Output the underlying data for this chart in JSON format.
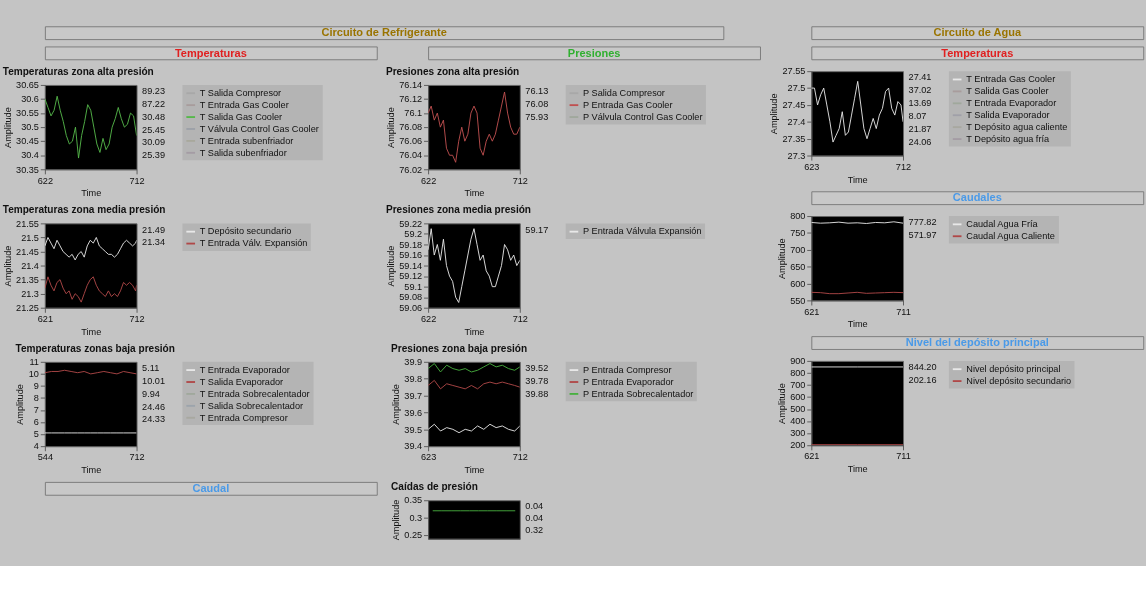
{
  "chart_data": [
    {
      "type": "other",
      "title": "Circuito de Refrigerante",
      "colors": [
        "#9a7400"
      ]
    },
    {
      "type": "other",
      "title": "Temperaturas",
      "colors": [
        "#e02020"
      ]
    },
    {
      "type": "line",
      "title": "Temperaturas zona alta presión",
      "xlabel": "Time",
      "ylabel": "Amplitude",
      "legend": "right",
      "x": [
        622,
        625,
        628,
        631,
        634,
        637,
        640,
        643,
        646,
        649,
        652,
        655,
        658,
        661,
        664,
        667,
        670,
        673,
        676,
        679,
        682,
        685,
        688,
        691,
        694,
        697,
        700,
        703,
        706,
        709,
        712
      ],
      "xlim": [
        622,
        712
      ],
      "xticks": [
        622,
        712
      ],
      "ylim": [
        30.35,
        30.65
      ],
      "yticks": [
        30.35,
        30.4,
        30.45,
        30.5,
        30.55,
        30.6,
        30.65
      ],
      "series": [
        {
          "name": "T Salida Compresor",
          "color": "#a8a8a8",
          "values": [
            null,
            null,
            null,
            null,
            null,
            null,
            null,
            null,
            null,
            null,
            null,
            null,
            null,
            null,
            null,
            null,
            null,
            null,
            null,
            null,
            null,
            null,
            null,
            null,
            null,
            null,
            null,
            null,
            null,
            null,
            null
          ]
        },
        {
          "name": "T Entrada Gas Cooler",
          "color": "#a89c9c",
          "values": [
            null,
            null,
            null,
            null,
            null,
            null,
            null,
            null,
            null,
            null,
            null,
            null,
            null,
            null,
            null,
            null,
            null,
            null,
            null,
            null,
            null,
            null,
            null,
            null,
            null,
            null,
            null,
            null,
            null,
            null,
            null
          ]
        },
        {
          "name": "T Salida Gas Cooler",
          "color": "#55b84a",
          "values": [
            30.6,
            30.57,
            30.54,
            30.56,
            30.61,
            30.56,
            30.52,
            30.47,
            30.44,
            30.45,
            30.5,
            30.39,
            30.47,
            30.52,
            30.58,
            30.56,
            30.5,
            30.44,
            30.41,
            30.46,
            30.42,
            30.44,
            30.5,
            30.53,
            30.57,
            30.53,
            30.5,
            30.51,
            30.55,
            30.54,
            30.47
          ]
        },
        {
          "name": "T Válvula Control Gas Cooler",
          "color": "#9ca0a8",
          "values": [
            null,
            null,
            null,
            null,
            null,
            null,
            null,
            null,
            null,
            null,
            null,
            null,
            null,
            null,
            null,
            null,
            null,
            null,
            null,
            null,
            null,
            null,
            null,
            null,
            null,
            null,
            null,
            null,
            null,
            null,
            null
          ]
        },
        {
          "name": "T Entrada subenfriador",
          "color": "#a8a89c",
          "values": [
            null,
            null,
            null,
            null,
            null,
            null,
            null,
            null,
            null,
            null,
            null,
            null,
            null,
            null,
            null,
            null,
            null,
            null,
            null,
            null,
            null,
            null,
            null,
            null,
            null,
            null,
            null,
            null,
            null,
            null,
            null
          ]
        },
        {
          "name": "T Salida subenfriador",
          "color": "#a49ca4",
          "values": [
            null,
            null,
            null,
            null,
            null,
            null,
            null,
            null,
            null,
            null,
            null,
            null,
            null,
            null,
            null,
            null,
            null,
            null,
            null,
            null,
            null,
            null,
            null,
            null,
            null,
            null,
            null,
            null,
            null,
            null,
            null
          ]
        }
      ],
      "annotations": [
        "89.23",
        "87.22",
        "30.48",
        "25.45",
        "30.09",
        "25.39"
      ]
    },
    {
      "type": "line",
      "title": "Temperaturas zona media presión",
      "xlabel": "Time",
      "ylabel": "Amplitude",
      "legend": "right",
      "x": [
        621,
        624,
        627,
        630,
        633,
        636,
        639,
        642,
        645,
        648,
        651,
        654,
        657,
        660,
        663,
        666,
        669,
        672,
        675,
        678,
        681,
        684,
        687,
        690,
        693,
        696,
        699,
        702,
        705,
        708,
        711,
        712
      ],
      "xlim": [
        621,
        712
      ],
      "xticks": [
        621,
        712
      ],
      "ylim": [
        21.25,
        21.55
      ],
      "yticks": [
        21.25,
        21.3,
        21.35,
        21.4,
        21.45,
        21.5,
        21.55
      ],
      "series": [
        {
          "name": "T Depósito secundario",
          "color": "#e8e8e8",
          "values": [
            21.47,
            21.5,
            21.48,
            21.46,
            21.49,
            21.47,
            21.45,
            21.44,
            21.43,
            21.44,
            21.42,
            21.44,
            21.45,
            21.43,
            21.47,
            21.49,
            21.48,
            21.5,
            21.47,
            21.46,
            21.45,
            21.44,
            21.44,
            21.43,
            21.44,
            21.46,
            21.48,
            21.49,
            21.48,
            21.47,
            21.48,
            21.49
          ]
        },
        {
          "name": "T Entrada Válv. Expansión",
          "color": "#b04848",
          "values": [
            21.32,
            21.36,
            21.33,
            21.31,
            21.34,
            21.35,
            21.32,
            21.3,
            21.31,
            21.28,
            21.3,
            21.29,
            21.27,
            21.3,
            21.33,
            21.35,
            21.36,
            21.33,
            21.31,
            21.3,
            21.29,
            21.31,
            21.29,
            21.3,
            21.29,
            21.31,
            21.34,
            21.33,
            21.34,
            21.33,
            21.31,
            21.33
          ]
        }
      ],
      "annotations": [
        "21.49",
        "21.34"
      ]
    },
    {
      "type": "line",
      "title": "Temperaturas zonas baja presión",
      "xlabel": "Time",
      "ylabel": "Amplitude",
      "legend": "right",
      "x": [
        544,
        556,
        568,
        580,
        592,
        604,
        616,
        628,
        640,
        652,
        664,
        676,
        688,
        700,
        712
      ],
      "xlim": [
        544,
        712
      ],
      "xticks": [
        544,
        712
      ],
      "ylim": [
        4,
        11
      ],
      "yticks": [
        4,
        5,
        6,
        7,
        8,
        9,
        10,
        11
      ],
      "series": [
        {
          "name": "T Entrada Evaporador",
          "color": "#e8e8e8",
          "values": [
            5.1,
            5.1,
            5.1,
            5.1,
            5.1,
            5.1,
            5.1,
            5.1,
            5.1,
            5.1,
            5.1,
            5.1,
            5.1,
            5.1,
            5.1
          ]
        },
        {
          "name": "T Salida Evaporador",
          "color": "#b04848",
          "values": [
            10.1,
            10.2,
            10.2,
            10.3,
            10.2,
            10.1,
            10.2,
            10.0,
            10.1,
            10.2,
            10.1,
            10.0,
            10.2,
            10.1,
            10.0
          ]
        },
        {
          "name": "T Entrada Sobrecalentador",
          "color": "#a0a89c",
          "values": [
            null,
            null,
            null,
            null,
            null,
            null,
            null,
            null,
            null,
            null,
            null,
            null,
            null,
            null,
            null
          ]
        },
        {
          "name": "T Salida Sobrecalentador",
          "color": "#9ca4ac",
          "values": [
            null,
            null,
            null,
            null,
            null,
            null,
            null,
            null,
            null,
            null,
            null,
            null,
            null,
            null,
            null
          ]
        },
        {
          "name": "T Entrada Compresor",
          "color": "#a8a8a0",
          "values": [
            null,
            null,
            null,
            null,
            null,
            null,
            null,
            null,
            null,
            null,
            null,
            null,
            null,
            null,
            null
          ]
        }
      ],
      "annotations": [
        "5.11",
        "10.01",
        "9.94",
        "24.46",
        "24.33"
      ]
    },
    {
      "type": "other",
      "title": "Caudal",
      "colors": [
        "#4a9ae8"
      ]
    },
    {
      "type": "other",
      "title": "Presiones",
      "colors": [
        "#30b030"
      ]
    },
    {
      "type": "line",
      "title": "Presiones zona alta presión",
      "xlabel": "Time",
      "ylabel": "Amplitude",
      "legend": "right",
      "x": [
        622,
        625,
        628,
        631,
        634,
        637,
        640,
        643,
        646,
        649,
        652,
        655,
        658,
        661,
        664,
        667,
        670,
        673,
        676,
        679,
        682,
        685,
        688,
        691,
        694,
        697,
        700,
        703,
        706,
        709,
        712
      ],
      "xlim": [
        622,
        712
      ],
      "xticks": [
        622,
        712
      ],
      "ylim": [
        76.02,
        76.14
      ],
      "yticks": [
        76.02,
        76.04,
        76.06,
        76.08,
        76.1,
        76.12,
        76.14
      ],
      "series": [
        {
          "name": "P Salida Compresor",
          "color": "#a8a8a8",
          "values": [
            null,
            null,
            null,
            null,
            null,
            null,
            null,
            null,
            null,
            null,
            null,
            null,
            null,
            null,
            null,
            null,
            null,
            null,
            null,
            null,
            null,
            null,
            null,
            null,
            null,
            null,
            null,
            null,
            null,
            null,
            null
          ]
        },
        {
          "name": "P Entrada Gas Cooler",
          "color": "#c05050",
          "values": [
            76.1,
            76.11,
            76.09,
            76.1,
            76.08,
            76.09,
            76.05,
            76.04,
            76.04,
            76.03,
            76.06,
            76.08,
            76.06,
            76.07,
            76.1,
            76.11,
            76.1,
            76.05,
            76.04,
            76.06,
            76.07,
            76.06,
            76.07,
            76.09,
            76.11,
            76.13,
            76.1,
            76.08,
            76.07,
            76.07,
            76.08
          ]
        },
        {
          "name": "P Válvula Control Gas Cooler",
          "color": "#a0a89c",
          "values": [
            null,
            null,
            null,
            null,
            null,
            null,
            null,
            null,
            null,
            null,
            null,
            null,
            null,
            null,
            null,
            null,
            null,
            null,
            null,
            null,
            null,
            null,
            null,
            null,
            null,
            null,
            null,
            null,
            null,
            null,
            null
          ]
        }
      ],
      "annotations": [
        "76.13",
        "76.08",
        "75.93"
      ]
    },
    {
      "type": "line",
      "title": "Presiones zona media presión",
      "xlabel": "Time",
      "ylabel": "Amplitude",
      "legend": "right",
      "x": [
        622,
        625,
        628,
        631,
        634,
        637,
        640,
        643,
        646,
        649,
        652,
        655,
        658,
        661,
        664,
        667,
        670,
        673,
        676,
        679,
        682,
        685,
        688,
        691,
        694,
        697,
        700,
        703,
        706,
        709,
        712
      ],
      "xlim": [
        622,
        712
      ],
      "xticks": [
        622,
        712
      ],
      "ylim": [
        59.06,
        59.22
      ],
      "yticks": [
        59.06,
        59.08,
        59.1,
        59.12,
        59.14,
        59.16,
        59.18,
        59.2,
        59.22
      ],
      "series": [
        {
          "name": "P Entrada Válvula Expansión",
          "color": "#e8e8e8",
          "values": [
            59.17,
            59.21,
            59.16,
            59.18,
            59.15,
            59.19,
            59.14,
            59.12,
            59.11,
            59.08,
            59.07,
            59.1,
            59.13,
            59.16,
            59.19,
            59.21,
            59.18,
            59.15,
            59.16,
            59.13,
            59.12,
            59.1,
            59.1,
            59.12,
            59.14,
            59.18,
            59.17,
            59.15,
            59.16,
            59.14,
            59.15
          ]
        }
      ],
      "annotations": [
        "59.17"
      ]
    },
    {
      "type": "line",
      "title": "Presiones zona baja presión",
      "xlabel": "Time",
      "ylabel": "Amplitude",
      "legend": "right",
      "x": [
        623,
        629,
        635,
        641,
        647,
        653,
        659,
        665,
        671,
        677,
        683,
        689,
        695,
        701,
        707,
        712
      ],
      "xlim": [
        623,
        712
      ],
      "xticks": [
        623,
        712
      ],
      "ylim": [
        39.4,
        39.9
      ],
      "yticks": [
        39.4,
        39.5,
        39.6,
        39.7,
        39.8,
        39.9
      ],
      "series": [
        {
          "name": "P Entrada Compresor",
          "color": "#e8e8e8",
          "values": [
            39.5,
            39.53,
            39.49,
            39.51,
            39.5,
            39.48,
            39.5,
            39.49,
            39.52,
            39.5,
            39.53,
            39.51,
            39.52,
            39.5,
            39.49,
            39.52
          ]
        },
        {
          "name": "P Entrada Evaporador",
          "color": "#b04848",
          "values": [
            39.76,
            39.79,
            39.74,
            39.77,
            39.76,
            39.75,
            39.74,
            39.76,
            39.74,
            39.77,
            39.78,
            39.77,
            39.78,
            39.77,
            39.76,
            39.75
          ]
        },
        {
          "name": "P Entrada Sobrecalentador",
          "color": "#48b040",
          "values": [
            39.86,
            39.89,
            39.84,
            39.88,
            39.86,
            39.85,
            39.86,
            39.84,
            39.85,
            39.87,
            39.89,
            39.87,
            39.88,
            39.86,
            39.85,
            39.87
          ]
        }
      ],
      "annotations": [
        "39.52",
        "39.78",
        "39.88"
      ]
    },
    {
      "type": "line",
      "title": "Caídas de presión",
      "ylabel": "Amplitude",
      "tick_labels": "y",
      "categories": [
        null,
        null,
        null,
        null,
        null,
        null,
        null,
        null,
        null,
        null
      ],
      "ylim": [
        0.24,
        0.35
      ],
      "yticks": [
        0.25,
        0.3,
        0.35
      ],
      "series": [
        {
          "color": "#48b040",
          "values": [
            0.32,
            0.32,
            0.32,
            0.32,
            0.32,
            0.32,
            0.32,
            0.32,
            0.32,
            0.32
          ]
        }
      ],
      "annotations": [
        "0.04",
        "0.04",
        "0.32"
      ]
    },
    {
      "type": "other",
      "title": "Circuito de Agua",
      "colors": [
        "#9a7400"
      ]
    },
    {
      "type": "other",
      "title": "Temperaturas",
      "colors": [
        "#e02020"
      ]
    },
    {
      "type": "line",
      "xlabel": "Time",
      "ylabel": "Amplitude",
      "legend": "right",
      "x": [
        623,
        626,
        629,
        632,
        635,
        638,
        641,
        644,
        647,
        650,
        653,
        656,
        659,
        662,
        665,
        668,
        671,
        674,
        677,
        680,
        683,
        686,
        689,
        692,
        695,
        698,
        701,
        704,
        707,
        710,
        712
      ],
      "xlim": [
        623,
        712
      ],
      "xticks": [
        623,
        712
      ],
      "ylim": [
        27.3,
        27.55
      ],
      "yticks": [
        27.3,
        27.35,
        27.4,
        27.45,
        27.5,
        27.55
      ],
      "series": [
        {
          "name": "T Entrada Gas Cooler",
          "color": "#e8e8e8",
          "values": [
            27.5,
            27.5,
            27.45,
            27.48,
            27.5,
            27.45,
            27.4,
            27.34,
            27.36,
            27.38,
            27.43,
            27.36,
            27.37,
            27.42,
            27.47,
            27.52,
            27.45,
            27.38,
            27.35,
            27.38,
            27.41,
            27.38,
            27.42,
            27.44,
            27.49,
            27.5,
            27.44,
            27.42,
            27.46,
            27.45,
            27.4
          ]
        },
        {
          "name": "T Salida Gas Cooler",
          "color": "#a89c9c",
          "values": [
            null,
            null,
            null,
            null,
            null,
            null,
            null,
            null,
            null,
            null,
            null,
            null,
            null,
            null,
            null,
            null,
            null,
            null,
            null,
            null,
            null,
            null,
            null,
            null,
            null,
            null,
            null,
            null,
            null,
            null,
            null
          ]
        },
        {
          "name": "T Entrada Evaporador",
          "color": "#a0a89c",
          "values": [
            null,
            null,
            null,
            null,
            null,
            null,
            null,
            null,
            null,
            null,
            null,
            null,
            null,
            null,
            null,
            null,
            null,
            null,
            null,
            null,
            null,
            null,
            null,
            null,
            null,
            null,
            null,
            null,
            null,
            null,
            null
          ]
        },
        {
          "name": "T Salida Evaporador",
          "color": "#a0a0a8",
          "values": [
            null,
            null,
            null,
            null,
            null,
            null,
            null,
            null,
            null,
            null,
            null,
            null,
            null,
            null,
            null,
            null,
            null,
            null,
            null,
            null,
            null,
            null,
            null,
            null,
            null,
            null,
            null,
            null,
            null,
            null,
            null
          ]
        },
        {
          "name": "T Depósito agua caliente",
          "color": "#a8a8a0",
          "values": [
            null,
            null,
            null,
            null,
            null,
            null,
            null,
            null,
            null,
            null,
            null,
            null,
            null,
            null,
            null,
            null,
            null,
            null,
            null,
            null,
            null,
            null,
            null,
            null,
            null,
            null,
            null,
            null,
            null,
            null,
            null
          ]
        },
        {
          "name": "T Depósito agua fría",
          "color": "#a49ca4",
          "values": [
            null,
            null,
            null,
            null,
            null,
            null,
            null,
            null,
            null,
            null,
            null,
            null,
            null,
            null,
            null,
            null,
            null,
            null,
            null,
            null,
            null,
            null,
            null,
            null,
            null,
            null,
            null,
            null,
            null,
            null,
            null
          ]
        }
      ],
      "annotations": [
        "27.41",
        "37.02",
        "13.69",
        "8.07",
        "21.87",
        "24.06"
      ]
    },
    {
      "type": "other",
      "title": "Caudales",
      "colors": [
        "#4a9ae8"
      ]
    },
    {
      "type": "line",
      "xlabel": "Time",
      "ylabel": "Amplitude",
      "legend": "right",
      "x": [
        621,
        630,
        639,
        648,
        657,
        666,
        675,
        684,
        693,
        702,
        711
      ],
      "xlim": [
        621,
        711
      ],
      "xticks": [
        621,
        711
      ],
      "ylim": [
        550,
        800
      ],
      "yticks": [
        550,
        600,
        650,
        700,
        750,
        800
      ],
      "series": [
        {
          "name": "Caudal  Agua Fría",
          "color": "#e8e8e8",
          "values": [
            781,
            779,
            780,
            782,
            779,
            780,
            778,
            781,
            780,
            783,
            779
          ]
        },
        {
          "name": "Caudal Agua Caliente",
          "color": "#b04848",
          "values": [
            574,
            573,
            570,
            570,
            572,
            574,
            571,
            572,
            573,
            574,
            573
          ]
        }
      ],
      "annotations": [
        "777.82",
        "571.97"
      ]
    },
    {
      "type": "other",
      "title": "Nivel del depósito principal",
      "colors": [
        "#4a9ae8"
      ]
    },
    {
      "type": "line",
      "xlabel": "Time",
      "ylabel": "Amplitude",
      "legend": "right",
      "x": [
        621,
        666,
        711
      ],
      "xlim": [
        621,
        711
      ],
      "xticks": [
        621,
        711
      ],
      "ylim": [
        200,
        900
      ],
      "yticks": [
        200,
        300,
        400,
        500,
        600,
        700,
        800,
        900
      ],
      "series": [
        {
          "name": "Nivel depósito principal",
          "color": "#e8e8e8",
          "values": [
            850,
            850,
            850
          ]
        },
        {
          "name": "Nivel depósito secundario",
          "color": "#b04848",
          "values": [
            205,
            205,
            205
          ]
        }
      ],
      "annotations": [
        "844.20",
        "202.16"
      ]
    }
  ]
}
